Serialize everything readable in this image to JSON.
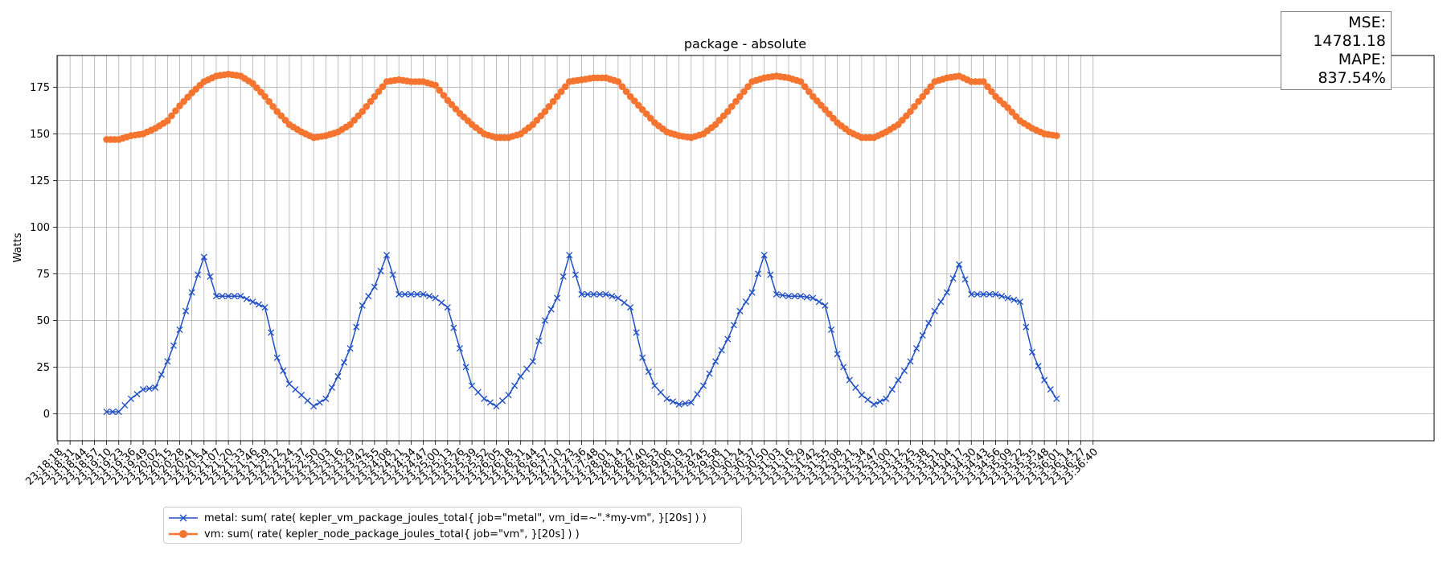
{
  "chart_data": {
    "type": "line",
    "title": "package - absolute",
    "xlabel": "",
    "ylabel": "Watts",
    "ylim": [
      -14.5,
      192
    ],
    "yticks": [
      0,
      25,
      50,
      75,
      100,
      125,
      150,
      175
    ],
    "grid": true,
    "legend_position": "bottom-left",
    "x_tick_labels": [
      "23:18:18",
      "23:18:31",
      "23:18:44",
      "23:18:57",
      "23:19:10",
      "23:19:23",
      "23:19:36",
      "23:19:49",
      "23:20:02",
      "23:20:15",
      "23:20:28",
      "23:20:41",
      "23:20:54",
      "23:21:07",
      "23:21:20",
      "23:21:33",
      "23:21:46",
      "23:21:59",
      "23:22:12",
      "23:22:24",
      "23:22:37",
      "23:22:50",
      "23:23:03",
      "23:23:16",
      "23:23:29",
      "23:23:42",
      "23:23:55",
      "23:24:08",
      "23:24:21",
      "23:24:34",
      "23:24:47",
      "23:25:00",
      "23:25:13",
      "23:25:26",
      "23:25:39",
      "23:25:52",
      "23:26:05",
      "23:26:18",
      "23:26:31",
      "23:26:44",
      "23:26:57",
      "23:27:10",
      "23:27:23",
      "23:27:36",
      "23:27:48",
      "23:28:01",
      "23:28:14",
      "23:28:27",
      "23:28:40",
      "23:28:53",
      "23:29:06",
      "23:29:19",
      "23:29:32",
      "23:29:45",
      "23:29:58",
      "23:30:11",
      "23:30:24",
      "23:30:37",
      "23:30:50",
      "23:31:03",
      "23:31:16",
      "23:31:29",
      "23:31:42",
      "23:31:55",
      "23:32:08",
      "23:32:21",
      "23:32:34",
      "23:32:47",
      "23:33:00",
      "23:33:12",
      "23:33:25",
      "23:33:38",
      "23:33:51",
      "23:34:04",
      "23:34:17",
      "23:34:30",
      "23:34:43",
      "23:34:56",
      "23:35:09",
      "23:35:22",
      "23:35:35",
      "23:35:48",
      "23:36:01",
      "23:36:14",
      "23:36:27",
      "23:36:40"
    ],
    "series": [
      {
        "name": "metal: sum( rate( kepler_vm_package_joules_total{ job=\"metal\", vm_id=~\".*my-vm\", }[20s] ) )",
        "color": "#1f4fc4",
        "marker": "x",
        "x": [
          "23:19:10",
          "23:19:23",
          "23:19:36",
          "23:19:49",
          "23:20:02",
          "23:20:15",
          "23:20:28",
          "23:20:41",
          "23:20:54",
          "23:21:07",
          "23:21:20",
          "23:21:33",
          "23:21:46",
          "23:21:59",
          "23:22:12",
          "23:22:24",
          "23:22:37",
          "23:22:50",
          "23:23:03",
          "23:23:16",
          "23:23:29",
          "23:23:42",
          "23:23:55",
          "23:24:08",
          "23:24:21",
          "23:24:34",
          "23:24:47",
          "23:25:00",
          "23:25:13",
          "23:25:26",
          "23:25:39",
          "23:25:52",
          "23:26:05",
          "23:26:18",
          "23:26:31",
          "23:26:44",
          "23:26:57",
          "23:27:10",
          "23:27:23",
          "23:27:36",
          "23:27:48",
          "23:28:01",
          "23:28:14",
          "23:28:27",
          "23:28:40",
          "23:28:53",
          "23:29:06",
          "23:29:19",
          "23:29:32",
          "23:29:45",
          "23:29:58",
          "23:30:11",
          "23:30:24",
          "23:30:37",
          "23:30:50",
          "23:31:03",
          "23:31:16",
          "23:31:29",
          "23:31:42",
          "23:31:55",
          "23:32:08",
          "23:32:21",
          "23:32:34",
          "23:32:47",
          "23:33:00",
          "23:33:12",
          "23:33:25",
          "23:33:38",
          "23:33:51",
          "23:34:04",
          "23:34:17",
          "23:34:30",
          "23:34:43",
          "23:34:56",
          "23:35:09",
          "23:35:22",
          "23:35:35",
          "23:35:48",
          "23:36:01"
        ],
        "values": [
          1,
          1,
          8,
          13,
          14,
          28,
          45,
          65,
          84,
          63,
          63,
          63,
          60,
          57,
          30,
          16,
          10,
          4,
          8,
          20,
          35,
          58,
          68,
          85,
          64,
          64,
          64,
          62,
          57,
          35,
          15,
          8,
          4,
          10,
          20,
          28,
          50,
          62,
          85,
          64,
          64,
          64,
          62,
          57,
          30,
          15,
          8,
          5,
          6,
          15,
          28,
          40,
          55,
          65,
          85,
          64,
          63,
          63,
          62,
          58,
          32,
          18,
          10,
          5,
          8,
          18,
          28,
          42,
          55,
          65,
          80,
          64,
          64,
          64,
          62,
          60,
          33,
          18,
          8
        ]
      },
      {
        "name": "vm: sum( rate( kepler_node_package_joules_total{ job=\"vm\", }[20s] ) )",
        "color": "#f5742f",
        "marker": "o",
        "x": [
          "23:19:10",
          "23:19:23",
          "23:19:36",
          "23:19:49",
          "23:20:02",
          "23:20:15",
          "23:20:28",
          "23:20:41",
          "23:20:54",
          "23:21:07",
          "23:21:20",
          "23:21:33",
          "23:21:46",
          "23:21:59",
          "23:22:12",
          "23:22:24",
          "23:22:37",
          "23:22:50",
          "23:23:03",
          "23:23:16",
          "23:23:29",
          "23:23:42",
          "23:23:55",
          "23:24:08",
          "23:24:21",
          "23:24:34",
          "23:24:47",
          "23:25:00",
          "23:25:13",
          "23:25:26",
          "23:25:39",
          "23:25:52",
          "23:26:05",
          "23:26:18",
          "23:26:31",
          "23:26:44",
          "23:26:57",
          "23:27:10",
          "23:27:23",
          "23:27:36",
          "23:27:48",
          "23:28:01",
          "23:28:14",
          "23:28:27",
          "23:28:40",
          "23:28:53",
          "23:29:06",
          "23:29:19",
          "23:29:32",
          "23:29:45",
          "23:29:58",
          "23:30:11",
          "23:30:24",
          "23:30:37",
          "23:30:50",
          "23:31:03",
          "23:31:16",
          "23:31:29",
          "23:31:42",
          "23:31:55",
          "23:32:08",
          "23:32:21",
          "23:32:34",
          "23:32:47",
          "23:33:00",
          "23:33:12",
          "23:33:25",
          "23:33:38",
          "23:33:51",
          "23:34:04",
          "23:34:17",
          "23:34:30",
          "23:34:43",
          "23:34:56",
          "23:35:09",
          "23:35:22",
          "23:35:35",
          "23:35:48",
          "23:36:01"
        ],
        "values": [
          147,
          147,
          149,
          150,
          153,
          157,
          165,
          172,
          178,
          181,
          182,
          181,
          177,
          170,
          162,
          155,
          151,
          148,
          149,
          151,
          155,
          162,
          170,
          178,
          179,
          178,
          178,
          176,
          168,
          161,
          155,
          150,
          148,
          148,
          150,
          155,
          162,
          170,
          178,
          179,
          180,
          180,
          178,
          170,
          163,
          156,
          151,
          149,
          148,
          150,
          155,
          162,
          170,
          178,
          180,
          181,
          180,
          178,
          170,
          163,
          156,
          151,
          148,
          148,
          151,
          155,
          162,
          170,
          178,
          180,
          181,
          178,
          178,
          170,
          164,
          157,
          153,
          150,
          149
        ]
      }
    ]
  },
  "metrics": {
    "mse": "MSE: 14781.18",
    "mape": "MAPE: 837.54%"
  }
}
